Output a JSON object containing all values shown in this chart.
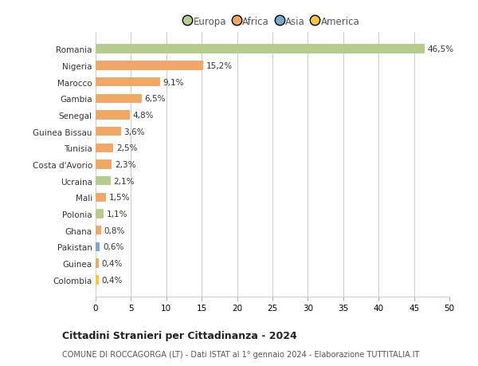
{
  "countries": [
    "Romania",
    "Nigeria",
    "Marocco",
    "Gambia",
    "Senegal",
    "Guinea Bissau",
    "Tunisia",
    "Costa d'Avorio",
    "Ucraina",
    "Mali",
    "Polonia",
    "Ghana",
    "Pakistan",
    "Guinea",
    "Colombia"
  ],
  "values": [
    46.5,
    15.2,
    9.1,
    6.5,
    4.8,
    3.6,
    2.5,
    2.3,
    2.1,
    1.5,
    1.1,
    0.8,
    0.6,
    0.4,
    0.4
  ],
  "labels": [
    "46,5%",
    "15,2%",
    "9,1%",
    "6,5%",
    "4,8%",
    "3,6%",
    "2,5%",
    "2,3%",
    "2,1%",
    "1,5%",
    "1,1%",
    "0,8%",
    "0,6%",
    "0,4%",
    "0,4%"
  ],
  "colors": [
    "#b5cc8e",
    "#f0a868",
    "#f0a868",
    "#f0a868",
    "#f0a868",
    "#f0a868",
    "#f0a868",
    "#f0a868",
    "#b5cc8e",
    "#f0a868",
    "#b5cc8e",
    "#f0a868",
    "#7aa8cc",
    "#f0a868",
    "#f5c842"
  ],
  "legend_labels": [
    "Europa",
    "Africa",
    "Asia",
    "America"
  ],
  "legend_colors": [
    "#b5cc8e",
    "#f0a868",
    "#7aa8cc",
    "#f5c842"
  ],
  "title": "Cittadini Stranieri per Cittadinanza - 2024",
  "subtitle": "COMUNE DI ROCCAGORGA (LT) - Dati ISTAT al 1° gennaio 2024 - Elaborazione TUTTITALIA.IT",
  "xlim": [
    0,
    50
  ],
  "xticks": [
    0,
    5,
    10,
    15,
    20,
    25,
    30,
    35,
    40,
    45,
    50
  ],
  "background_color": "#ffffff",
  "grid_color": "#cccccc"
}
